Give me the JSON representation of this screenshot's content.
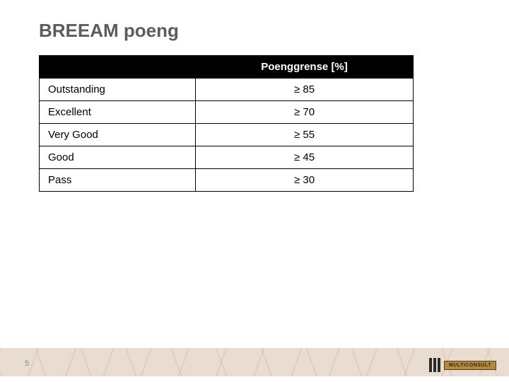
{
  "title": "BREEAM poeng",
  "page_number": "5",
  "colors": {
    "title_text": "#5c5c5c",
    "header_bg": "#000000",
    "header_text": "#ffffff",
    "cell_border": "#000000",
    "footer_band": "#e8ddd0",
    "logo_accent": "#b58a3f"
  },
  "table": {
    "columns": [
      {
        "label": "",
        "key": "rating"
      },
      {
        "label": "Poenggrense [%]",
        "key": "threshold"
      }
    ],
    "rows": [
      {
        "rating": "Outstanding",
        "threshold": "≥ 85"
      },
      {
        "rating": "Excellent",
        "threshold": "≥ 70"
      },
      {
        "rating": "Very Good",
        "threshold": "≥ 55"
      },
      {
        "rating": "Good",
        "threshold": "≥ 45"
      },
      {
        "rating": "Pass",
        "threshold": "≥ 30"
      }
    ],
    "col_widths_pct": [
      55,
      45
    ],
    "font_size_pt": 11
  },
  "logo": {
    "label": "MULTICONSULT",
    "icon": "bars-icon"
  }
}
